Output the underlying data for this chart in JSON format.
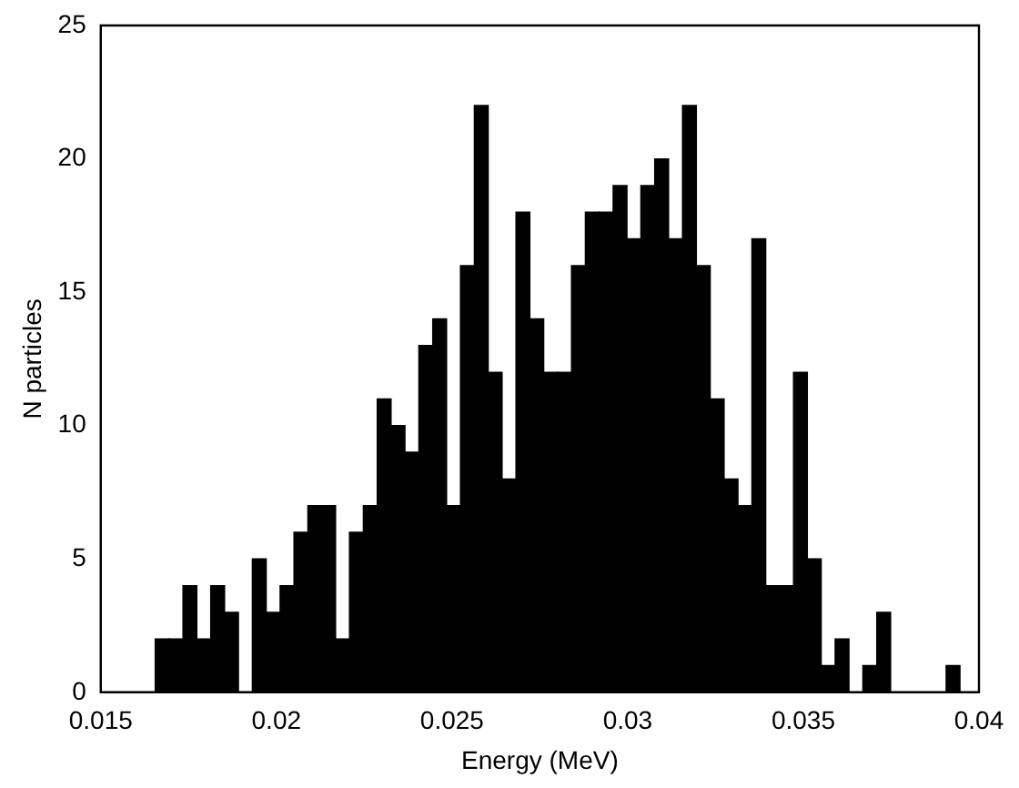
{
  "chart_data": {
    "type": "histogram",
    "xlabel": "Energy (MeV)",
    "ylabel": "N particles",
    "color": "#000000",
    "bins": [
      0.01655,
      0.016945,
      0.01734,
      0.017735,
      0.01813,
      0.018525,
      0.01892,
      0.019315,
      0.01971,
      0.020105,
      0.0205,
      0.020895,
      0.02129,
      0.021685,
      0.02208,
      0.022475,
      0.02287,
      0.023265,
      0.02366,
      0.024055,
      0.02445,
      0.024845,
      0.02524,
      0.025635,
      0.02603,
      0.026425,
      0.02682,
      0.027215,
      0.02761,
      0.028005,
      0.0284,
      0.028795,
      0.02919,
      0.029585,
      0.02998,
      0.030375,
      0.03077,
      0.031165,
      0.03156,
      0.031955,
      0.03235,
      0.032745,
      0.03314,
      0.033535,
      0.03393,
      0.034325,
      0.03472,
      0.035115,
      0.03551,
      0.035905,
      0.0363,
      0.036695,
      0.03709,
      0.037485,
      0.03788,
      0.038275,
      0.03867,
      0.039065,
      0.03946
    ],
    "values": [
      2,
      2,
      4,
      2,
      4,
      3,
      0,
      5,
      3,
      4,
      6,
      7,
      7,
      2,
      6,
      7,
      11,
      10,
      9,
      13,
      14,
      7,
      16,
      22,
      12,
      8,
      18,
      14,
      12,
      12,
      16,
      18,
      18,
      19,
      17,
      19,
      20,
      17,
      22,
      16,
      11,
      8,
      7,
      17,
      4,
      4,
      12,
      5,
      1,
      2,
      0,
      1,
      3,
      0,
      0,
      0,
      0,
      1
    ],
    "xlim": [
      0.015,
      0.04
    ],
    "xticks": [
      0.015,
      0.02,
      0.025,
      0.03,
      0.035,
      0.04
    ],
    "ylim": [
      0,
      25
    ],
    "yticks": [
      0,
      5,
      10,
      15,
      20,
      25
    ],
    "grid": false,
    "legend": false
  }
}
